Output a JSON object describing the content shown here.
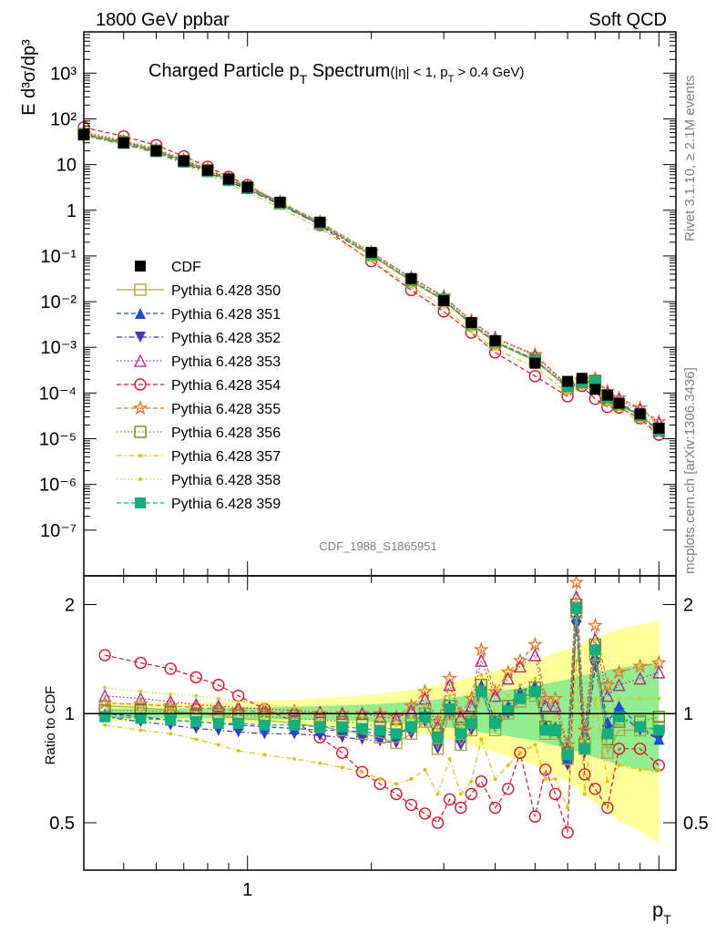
{
  "header": {
    "left": "1800 GeV ppbar",
    "right": "Soft QCD"
  },
  "side": {
    "rivet": "Rivet 3.1.10, ≥ 2.1M events",
    "mcplots": "mcplots.cern.ch [arXiv:1306.3436]"
  },
  "analysis_tag": "CDF_1988_S1865951",
  "chart_data": [
    {
      "type": "scatter",
      "title": "Charged Particle p_T Spectrum",
      "title_main": "Charged Particle p",
      "title_sub": "T",
      "title_main2": " Spectrum",
      "title_cut": "(|η| < 1, p",
      "title_cut_sub": "T",
      "title_cut2": " > 0.4 GeV)",
      "ylabel": "E d³σ/dp³",
      "yscale": "log",
      "xscale": "log",
      "xlim": [
        0.4,
        11
      ],
      "ylim": [
        1e-08,
        8000
      ],
      "ytick_labels": [
        "10⁻⁷",
        "10⁻⁶",
        "10⁻⁵",
        "10⁻⁴",
        "10⁻³",
        "10⁻²",
        "10⁻¹",
        "1",
        "10",
        "10²",
        "10³"
      ],
      "ytick_values": [
        1e-07,
        1e-06,
        1e-05,
        0.0001,
        0.001,
        0.01,
        0.1,
        1,
        10,
        100,
        1000
      ],
      "reference": {
        "name": "CDF",
        "x": [
          0.4,
          0.5,
          0.6,
          0.7,
          0.8,
          0.9,
          1.0,
          1.2,
          1.5,
          2.0,
          2.5,
          3.0,
          3.5,
          4.0,
          5.0,
          6.0,
          6.5,
          7.0,
          7.5,
          8.0,
          9.0,
          10.0
        ],
        "y": [
          45,
          30,
          20,
          12,
          7.5,
          4.8,
          3.2,
          1.5,
          0.55,
          0.12,
          0.032,
          0.0105,
          0.0035,
          0.0014,
          0.00045,
          0.00018,
          0.00021,
          0.00012,
          9e-05,
          6e-05,
          3.5e-05,
          1.7e-05
        ]
      },
      "legend": [
        {
          "name": "CDF",
          "color": "#000000",
          "marker": "square-filled",
          "line": "none"
        },
        {
          "name": "Pythia 6.428 350",
          "color": "#b5a23c",
          "marker": "square-open",
          "line": "solid"
        },
        {
          "name": "Pythia 6.428 351",
          "color": "#1a4fcf",
          "marker": "triangle-up-filled",
          "line": "dashed"
        },
        {
          "name": "Pythia 6.428 352",
          "color": "#4a2fc0",
          "marker": "triangle-down-filled",
          "line": "dashdot"
        },
        {
          "name": "Pythia 6.428 353",
          "color": "#b0209a",
          "marker": "triangle-up-open",
          "line": "dotted"
        },
        {
          "name": "Pythia 6.428 354",
          "color": "#e0102a",
          "marker": "circle-open",
          "line": "dashed"
        },
        {
          "name": "Pythia 6.428 355",
          "color": "#f07020",
          "marker": "star-open",
          "line": "dashed"
        },
        {
          "name": "Pythia 6.428 356",
          "color": "#6e8c10",
          "marker": "square-open",
          "line": "dotted"
        },
        {
          "name": "Pythia 6.428 357",
          "color": "#e0c000",
          "marker": "dot",
          "line": "dashdot"
        },
        {
          "name": "Pythia 6.428 358",
          "color": "#c8d020",
          "marker": "dot",
          "line": "dotted"
        },
        {
          "name": "Pythia 6.428 359",
          "color": "#10b080",
          "marker": "square-filled",
          "line": "dashed"
        }
      ]
    },
    {
      "type": "line",
      "ylabel": "Ratio to CDF",
      "xlabel_main": "p",
      "xlabel_sub": "T",
      "yscale": "log",
      "xscale": "log",
      "xlim": [
        0.4,
        11
      ],
      "ylim": [
        0.37,
        2.4
      ],
      "ytick_labels": [
        "0.5",
        "1",
        "2"
      ],
      "ytick_values": [
        0.5,
        1,
        2
      ],
      "xtick_labels": [
        "1"
      ],
      "xtick_values": [
        1
      ],
      "x": [
        0.45,
        0.55,
        0.65,
        0.75,
        0.85,
        0.95,
        1.1,
        1.3,
        1.5,
        1.7,
        1.9,
        2.1,
        2.3,
        2.5,
        2.7,
        2.9,
        3.1,
        3.3,
        3.5,
        3.7,
        4.0,
        4.3,
        4.6,
        5.0,
        5.3,
        5.6,
        6.0,
        6.3,
        6.6,
        7.0,
        7.5,
        8.0,
        9.0,
        10.0
      ],
      "series": [
        {
          "name": "Pythia 6.428 354",
          "values": [
            1.45,
            1.38,
            1.33,
            1.26,
            1.2,
            1.12,
            1.03,
            0.95,
            0.86,
            0.78,
            0.69,
            0.64,
            0.6,
            0.56,
            0.53,
            0.5,
            0.58,
            0.55,
            0.6,
            0.65,
            0.55,
            0.62,
            0.78,
            0.52,
            0.7,
            0.6,
            0.47,
            1.9,
            0.68,
            0.62,
            0.55,
            0.8,
            0.8,
            0.72
          ]
        },
        {
          "name": "Pythia 6.428 355",
          "values": [
            1.07,
            1.06,
            1.05,
            1.04,
            1.03,
            1.02,
            1.01,
            1.01,
            1.0,
            1.0,
            1.0,
            1.0,
            0.98,
            1.05,
            1.15,
            0.95,
            1.25,
            1.0,
            1.1,
            1.5,
            1.15,
            1.3,
            1.4,
            1.55,
            1.1,
            1.1,
            0.82,
            2.3,
            0.9,
            1.75,
            1.2,
            1.3,
            1.35,
            1.38
          ]
        },
        {
          "name": "Pythia 6.428 353",
          "values": [
            1.12,
            1.1,
            1.08,
            1.06,
            1.05,
            1.04,
            1.03,
            1.02,
            1.01,
            1.0,
            1.0,
            0.98,
            0.97,
            1.02,
            1.1,
            0.92,
            1.2,
            0.98,
            1.05,
            1.4,
            1.12,
            1.25,
            1.35,
            1.45,
            1.05,
            1.05,
            0.8,
            2.1,
            0.88,
            1.6,
            1.12,
            1.2,
            1.25,
            1.3
          ]
        },
        {
          "name": "Pythia 6.428 352",
          "values": [
            0.98,
            0.95,
            0.93,
            0.91,
            0.9,
            0.89,
            0.88,
            0.88,
            0.87,
            0.86,
            0.85,
            0.84,
            0.83,
            0.88,
            0.95,
            0.8,
            1.0,
            0.82,
            0.9,
            1.15,
            0.92,
            1.0,
            1.1,
            1.15,
            0.9,
            0.9,
            0.72,
            1.75,
            0.78,
            1.35,
            0.9,
            1.0,
            0.9,
            0.85
          ]
        },
        {
          "name": "Pythia 6.428 351",
          "values": [
            1.0,
            0.98,
            0.96,
            0.95,
            0.94,
            0.93,
            0.92,
            0.91,
            0.9,
            0.9,
            0.89,
            0.88,
            0.87,
            0.92,
            1.0,
            0.85,
            1.05,
            0.86,
            0.95,
            1.2,
            0.96,
            1.05,
            1.15,
            1.2,
            0.93,
            0.92,
            0.75,
            1.85,
            0.82,
            1.45,
            0.95,
            1.05,
            0.92,
            0.85
          ]
        },
        {
          "name": "Pythia 6.428 350",
          "values": [
            1.05,
            1.04,
            1.02,
            1.0,
            0.99,
            0.97,
            0.96,
            0.94,
            0.92,
            0.9,
            0.88,
            0.86,
            0.83,
            0.88,
            0.95,
            0.8,
            1.0,
            0.82,
            0.9,
            1.15,
            0.9,
            1.0,
            1.08,
            1.12,
            0.88,
            0.88,
            0.75,
            1.9,
            0.8,
            1.45,
            0.78,
            0.9,
            0.9,
            0.92
          ]
        },
        {
          "name": "Pythia 6.428 356",
          "values": [
            1.02,
            1.02,
            1.01,
            1.0,
            1.0,
            0.99,
            0.98,
            0.97,
            0.96,
            0.95,
            0.94,
            0.92,
            0.9,
            0.94,
            1.0,
            0.88,
            1.05,
            0.9,
            0.95,
            1.2,
            0.95,
            1.05,
            1.12,
            1.18,
            0.92,
            0.9,
            0.78,
            2.0,
            0.82,
            1.55,
            0.85,
            0.95,
            0.95,
            0.98
          ]
        },
        {
          "name": "Pythia 6.428 357",
          "values": [
            0.93,
            0.9,
            0.88,
            0.85,
            0.82,
            0.79,
            0.77,
            0.75,
            0.73,
            0.71,
            0.69,
            0.66,
            0.64,
            0.66,
            0.7,
            0.6,
            0.75,
            0.6,
            0.65,
            0.85,
            0.66,
            0.72,
            0.78,
            0.82,
            0.66,
            0.66,
            0.55,
            1.4,
            0.6,
            1.1,
            0.65,
            0.72,
            0.7,
            0.7
          ]
        },
        {
          "name": "Pythia 6.428 358",
          "values": [
            1.18,
            1.15,
            1.13,
            1.12,
            1.1,
            1.08,
            1.06,
            1.04,
            1.02,
            1.0,
            0.98,
            0.96,
            0.93,
            0.98,
            1.05,
            0.9,
            1.12,
            0.92,
            1.0,
            1.28,
            1.02,
            1.12,
            1.2,
            1.25,
            0.98,
            0.98,
            0.78,
            2.05,
            0.85,
            1.6,
            1.0,
            1.1,
            1.1,
            1.1
          ]
        },
        {
          "name": "Pythia 6.428 359",
          "values": [
            0.98,
            0.97,
            0.96,
            0.95,
            0.94,
            0.94,
            0.93,
            0.93,
            0.92,
            0.92,
            0.91,
            0.9,
            0.88,
            0.92,
            0.98,
            0.86,
            1.03,
            0.88,
            0.94,
            1.15,
            0.94,
            1.02,
            1.1,
            1.15,
            0.9,
            0.9,
            0.77,
            1.95,
            0.8,
            1.5,
            0.88,
            0.98,
            0.92,
            0.9
          ]
        }
      ]
    }
  ]
}
